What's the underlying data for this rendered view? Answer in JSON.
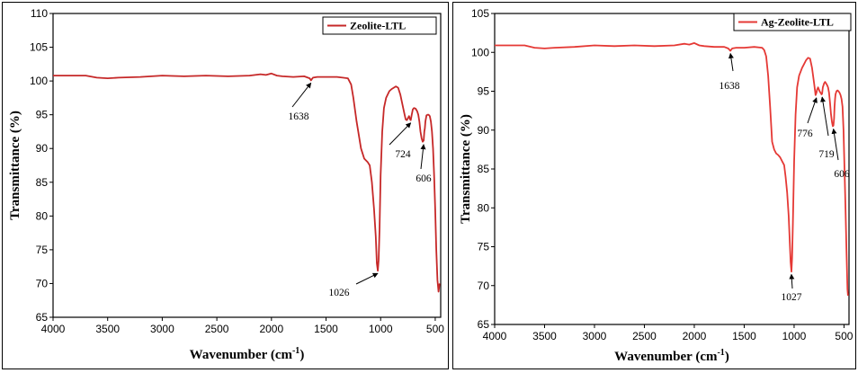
{
  "chart_data": [
    {
      "type": "line",
      "xlabel": "Wavenumber (cm",
      "xlabel_sup": "-1",
      "xlabel_end": ")",
      "ylabel": "Transmittance  (%)",
      "xlim": [
        4000,
        450
      ],
      "ylim": [
        65,
        110
      ],
      "xticks": [
        4000,
        3500,
        3000,
        2500,
        2000,
        1500,
        1000,
        500
      ],
      "yticks": [
        65,
        70,
        75,
        80,
        85,
        90,
        95,
        100,
        105,
        110
      ],
      "legend_position": "top-right",
      "series": [
        {
          "name": "Zeolite-LTL",
          "color": "#c62828",
          "x": [
            4000,
            3700,
            3600,
            3500,
            3400,
            3200,
            3000,
            2800,
            2600,
            2400,
            2200,
            2100,
            2050,
            2000,
            1950,
            1900,
            1800,
            1700,
            1650,
            1638,
            1620,
            1580,
            1500,
            1400,
            1300,
            1270,
            1250,
            1220,
            1180,
            1150,
            1120,
            1100,
            1080,
            1060,
            1045,
            1035,
            1026,
            1018,
            1010,
            1000,
            985,
            970,
            950,
            920,
            900,
            880,
            860,
            840,
            820,
            800,
            780,
            770,
            760,
            750,
            740,
            730,
            724,
            715,
            705,
            695,
            680,
            665,
            655,
            645,
            635,
            625,
            615,
            606,
            600,
            595,
            590,
            580,
            570,
            560,
            550,
            540,
            530,
            520,
            510,
            500,
            490,
            480,
            470,
            460
          ],
          "y": [
            100.8,
            100.8,
            100.5,
            100.4,
            100.5,
            100.6,
            100.8,
            100.7,
            100.8,
            100.7,
            100.8,
            101.0,
            100.9,
            101.1,
            100.8,
            100.7,
            100.6,
            100.7,
            100.4,
            100.1,
            100.5,
            100.6,
            100.6,
            100.6,
            100.4,
            99.5,
            97.5,
            94.0,
            90.0,
            88.5,
            88.0,
            87.5,
            85.0,
            81.0,
            77.0,
            73.0,
            71.9,
            73.5,
            78.0,
            86.0,
            92.5,
            96.0,
            97.5,
            98.5,
            98.8,
            99.0,
            99.2,
            99.0,
            98.0,
            96.5,
            95.0,
            94.3,
            94.2,
            94.5,
            94.8,
            94.3,
            94.2,
            95.0,
            95.8,
            96.0,
            95.9,
            95.5,
            95.0,
            94.0,
            92.5,
            91.5,
            91.0,
            91.2,
            92.5,
            93.0,
            94.0,
            94.9,
            95.0,
            95.0,
            94.8,
            94.0,
            92.5,
            90.0,
            86.0,
            81.0,
            75.0,
            70.5,
            68.8,
            70.0
          ]
        }
      ],
      "annotations": [
        {
          "text": "1638",
          "x": 1638
        },
        {
          "text": "724",
          "x": 724
        },
        {
          "text": "606",
          "x": 606
        },
        {
          "text": "1026",
          "x": 1026
        }
      ]
    },
    {
      "type": "line",
      "xlabel": "Wavenumber (cm",
      "xlabel_sup": "-1",
      "xlabel_end": ")",
      "ylabel": "Transmittance  (%)",
      "xlim": [
        4000,
        450
      ],
      "ylim": [
        65,
        105
      ],
      "xticks": [
        4000,
        3500,
        3000,
        2500,
        2000,
        1500,
        1000,
        500
      ],
      "yticks": [
        65,
        70,
        75,
        80,
        85,
        90,
        95,
        100,
        105
      ],
      "legend_position": "top-right",
      "series": [
        {
          "name": "Ag-Zeolite-LTL",
          "color": "#e53935",
          "x": [
            4000,
            3700,
            3600,
            3500,
            3400,
            3200,
            3000,
            2800,
            2600,
            2400,
            2200,
            2100,
            2050,
            2000,
            1950,
            1900,
            1800,
            1700,
            1660,
            1638,
            1620,
            1580,
            1500,
            1400,
            1320,
            1300,
            1280,
            1260,
            1240,
            1220,
            1200,
            1180,
            1160,
            1140,
            1120,
            1100,
            1085,
            1070,
            1055,
            1045,
            1035,
            1027,
            1020,
            1012,
            1000,
            985,
            970,
            950,
            920,
            900,
            880,
            860,
            840,
            820,
            800,
            790,
            785,
            776,
            770,
            760,
            745,
            735,
            725,
            719,
            712,
            700,
            690,
            680,
            670,
            660,
            650,
            640,
            630,
            620,
            612,
            606,
            600,
            595,
            590,
            585,
            575,
            565,
            555,
            545,
            535,
            525,
            515,
            505,
            495,
            485,
            475,
            465,
            460
          ],
          "y": [
            100.9,
            100.9,
            100.6,
            100.5,
            100.6,
            100.7,
            100.9,
            100.8,
            100.9,
            100.8,
            100.9,
            101.1,
            101.0,
            101.2,
            100.9,
            100.8,
            100.7,
            100.7,
            100.5,
            100.2,
            100.5,
            100.6,
            100.6,
            100.7,
            100.6,
            100.3,
            99.5,
            97.0,
            93.0,
            88.5,
            87.5,
            87.0,
            86.8,
            86.5,
            86.0,
            85.5,
            84.0,
            82.0,
            79.0,
            76.0,
            73.0,
            71.8,
            73.5,
            78.0,
            86.0,
            92.0,
            95.5,
            97.0,
            98.0,
            98.5,
            99.0,
            99.3,
            99.2,
            98.0,
            96.0,
            95.0,
            94.5,
            94.8,
            95.2,
            95.5,
            95.0,
            94.8,
            94.6,
            94.7,
            95.5,
            96.0,
            96.2,
            96.0,
            95.8,
            95.5,
            94.8,
            93.5,
            92.0,
            91.0,
            90.5,
            90.6,
            91.5,
            93.0,
            94.0,
            94.6,
            95.0,
            95.1,
            95.0,
            94.8,
            94.5,
            94.0,
            93.0,
            90.0,
            85.0,
            80.0,
            74.5,
            69.5,
            68.7
          ]
        }
      ],
      "annotations": [
        {
          "text": "1638",
          "x": 1638
        },
        {
          "text": "776",
          "x": 776
        },
        {
          "text": "719",
          "x": 719
        },
        {
          "text": "606",
          "x": 606
        },
        {
          "text": "1027",
          "x": 1027
        }
      ]
    }
  ]
}
